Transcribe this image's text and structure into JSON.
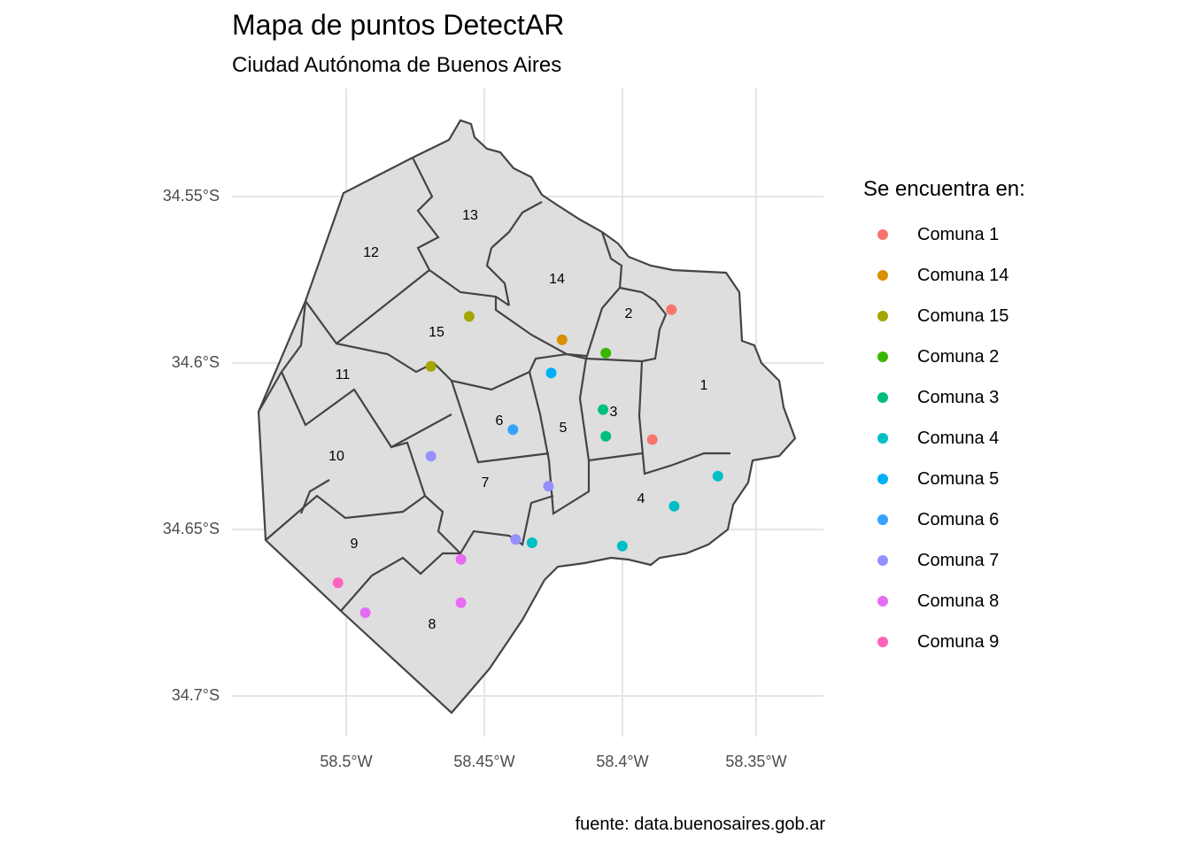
{
  "title": "Mapa de puntos DetectAR",
  "subtitle": "Ciudad Autónoma de Buenos Aires",
  "caption": "fuente: data.buenosaires.gob.ar",
  "axes": {
    "y_ticks": [
      "34.55°S",
      "34.6°S",
      "34.65°S",
      "34.7°S"
    ],
    "x_ticks": [
      "58.5°W",
      "58.45°W",
      "58.4°W",
      "58.35°W"
    ]
  },
  "legend": {
    "title": "Se encuentra en:",
    "items": [
      {
        "label": "Comuna 1",
        "color": "#F8766D"
      },
      {
        "label": "Comuna 14",
        "color": "#D89000"
      },
      {
        "label": "Comuna 15",
        "color": "#A3A500"
      },
      {
        "label": "Comuna 2",
        "color": "#39B600"
      },
      {
        "label": "Comuna 3",
        "color": "#00BF7D"
      },
      {
        "label": "Comuna 4",
        "color": "#00BFC4"
      },
      {
        "label": "Comuna 5",
        "color": "#00B0F6"
      },
      {
        "label": "Comuna 6",
        "color": "#35A2FF"
      },
      {
        "label": "Comuna 7",
        "color": "#9590FF"
      },
      {
        "label": "Comuna 8",
        "color": "#E76BF3"
      },
      {
        "label": "Comuna 9",
        "color": "#FF62BC"
      }
    ]
  },
  "comuna_labels": [
    "1",
    "2",
    "3",
    "4",
    "5",
    "6",
    "7",
    "8",
    "9",
    "10",
    "11",
    "12",
    "13",
    "14",
    "15"
  ],
  "chart_data": {
    "type": "scatter",
    "xlim": [
      -58.53,
      -58.33
    ],
    "ylim": [
      -34.71,
      -34.54
    ],
    "points": [
      {
        "lon": -58.381,
        "lat": -34.584,
        "comuna": "Comuna 1"
      },
      {
        "lon": -58.388,
        "lat": -34.623,
        "comuna": "Comuna 1"
      },
      {
        "lon": -58.421,
        "lat": -34.593,
        "comuna": "Comuna 14"
      },
      {
        "lon": -58.455,
        "lat": -34.586,
        "comuna": "Comuna 15"
      },
      {
        "lon": -58.469,
        "lat": -34.601,
        "comuna": "Comuna 15"
      },
      {
        "lon": -58.405,
        "lat": -34.597,
        "comuna": "Comuna 2"
      },
      {
        "lon": -58.406,
        "lat": -34.614,
        "comuna": "Comuna 3"
      },
      {
        "lon": -58.405,
        "lat": -34.622,
        "comuna": "Comuna 3"
      },
      {
        "lon": -58.364,
        "lat": -34.634,
        "comuna": "Comuna 4"
      },
      {
        "lon": -58.38,
        "lat": -34.643,
        "comuna": "Comuna 4"
      },
      {
        "lon": -58.399,
        "lat": -34.655,
        "comuna": "Comuna 4"
      },
      {
        "lon": -58.432,
        "lat": -34.654,
        "comuna": "Comuna 4"
      },
      {
        "lon": -58.425,
        "lat": -34.603,
        "comuna": "Comuna 5"
      },
      {
        "lon": -58.439,
        "lat": -34.62,
        "comuna": "Comuna 6"
      },
      {
        "lon": -58.469,
        "lat": -34.628,
        "comuna": "Comuna 7"
      },
      {
        "lon": -58.426,
        "lat": -34.637,
        "comuna": "Comuna 7"
      },
      {
        "lon": -58.438,
        "lat": -34.653,
        "comuna": "Comuna 7"
      },
      {
        "lon": -58.458,
        "lat": -34.659,
        "comuna": "Comuna 8"
      },
      {
        "lon": -58.458,
        "lat": -34.672,
        "comuna": "Comuna 8"
      },
      {
        "lon": -58.493,
        "lat": -34.675,
        "comuna": "Comuna 8"
      },
      {
        "lon": -58.503,
        "lat": -34.666,
        "comuna": "Comuna 9"
      }
    ]
  }
}
